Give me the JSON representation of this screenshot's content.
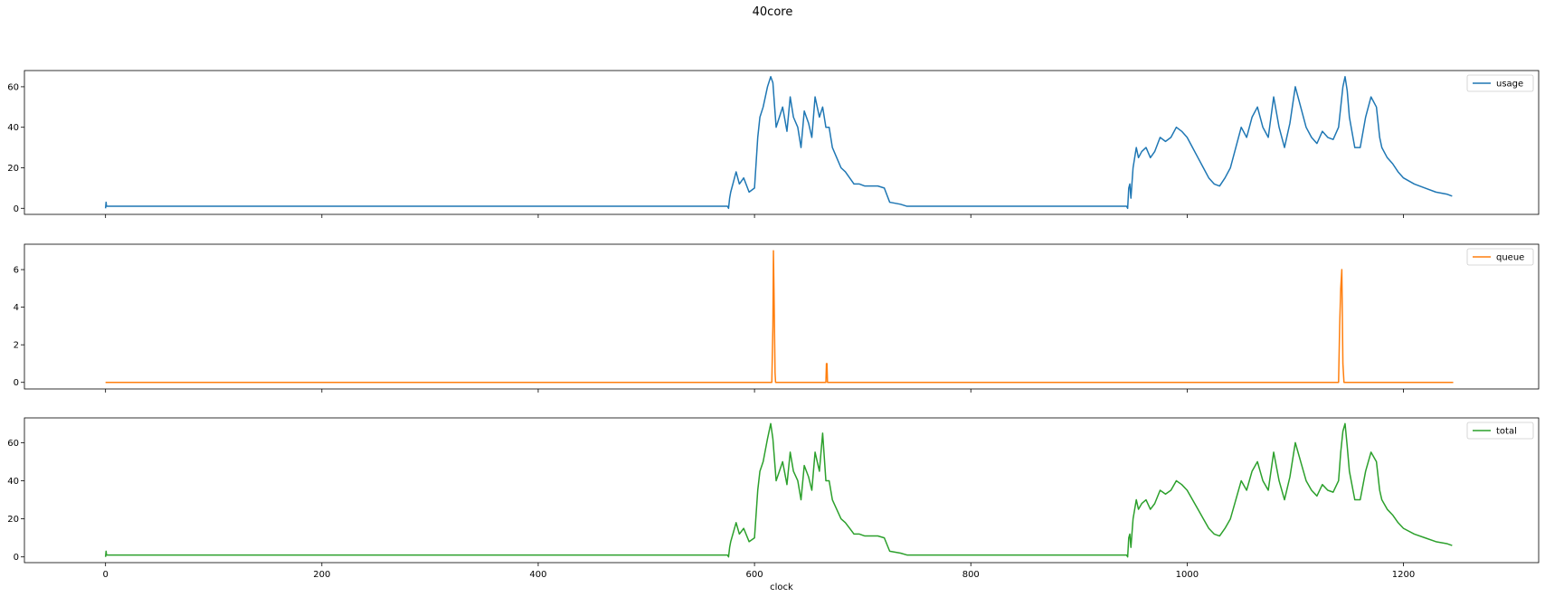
{
  "figure": {
    "title": "40core",
    "xlabel": "clock"
  },
  "chart_data": [
    {
      "type": "line",
      "series": [
        {
          "name": "usage",
          "color": "#1f77b4"
        }
      ],
      "x": [
        0,
        0.5,
        0.9,
        1.2,
        2,
        575,
        576,
        577,
        578,
        580,
        583,
        586,
        590,
        595,
        600,
        603,
        605,
        608,
        612,
        615,
        617,
        620,
        623,
        626,
        630,
        633,
        636,
        640,
        643,
        646,
        650,
        653,
        656,
        660,
        663,
        666,
        669,
        672,
        676,
        680,
        684,
        688,
        692,
        697,
        702,
        708,
        714,
        720,
        725,
        735,
        741,
        745,
        760,
        800,
        850,
        900,
        944,
        945,
        946,
        947,
        948,
        950,
        953,
        955,
        958,
        962,
        966,
        970,
        975,
        980,
        985,
        990,
        995,
        1000,
        1005,
        1010,
        1015,
        1020,
        1025,
        1030,
        1035,
        1040,
        1045,
        1050,
        1055,
        1060,
        1065,
        1070,
        1075,
        1080,
        1085,
        1090,
        1095,
        1100,
        1105,
        1110,
        1115,
        1120,
        1125,
        1130,
        1135,
        1140,
        1142,
        1144,
        1146,
        1148,
        1150,
        1155,
        1160,
        1165,
        1170,
        1175,
        1178,
        1180,
        1185,
        1190,
        1195,
        1200,
        1210,
        1220,
        1230,
        1240,
        1245
      ],
      "y": [
        0,
        3,
        1,
        1,
        1,
        1,
        0,
        5,
        8,
        12,
        18,
        12,
        15,
        8,
        10,
        35,
        45,
        50,
        60,
        65,
        62,
        40,
        45,
        50,
        38,
        55,
        45,
        40,
        30,
        48,
        42,
        35,
        55,
        45,
        50,
        40,
        40,
        30,
        25,
        20,
        18,
        15,
        12,
        12,
        11,
        11,
        11,
        10,
        3,
        2,
        1,
        1,
        1,
        1,
        1,
        1,
        1,
        0,
        10,
        12,
        5,
        20,
        30,
        25,
        28,
        30,
        25,
        28,
        35,
        33,
        35,
        40,
        38,
        35,
        30,
        25,
        20,
        15,
        12,
        11,
        15,
        20,
        30,
        40,
        35,
        45,
        50,
        40,
        35,
        55,
        40,
        30,
        42,
        60,
        50,
        40,
        35,
        32,
        38,
        35,
        34,
        40,
        50,
        60,
        65,
        58,
        45,
        30,
        30,
        45,
        55,
        50,
        35,
        30,
        25,
        22,
        18,
        15,
        12,
        10,
        8,
        7,
        6
      ],
      "ylim": [
        -3,
        68
      ],
      "yticks": [
        "0",
        "20",
        "40",
        "60"
      ],
      "legend": "top-right"
    },
    {
      "type": "line",
      "series": [
        {
          "name": "queue",
          "color": "#ff7f0e"
        }
      ],
      "x": [
        0,
        616,
        617,
        617.5,
        618,
        619,
        619.5,
        620,
        666,
        666.5,
        667,
        667.5,
        1140,
        1141,
        1142,
        1143,
        1144,
        1145,
        1246
      ],
      "y": [
        0,
        0,
        3,
        7,
        5,
        0.5,
        0,
        0,
        0,
        1,
        1,
        0,
        0,
        3,
        5,
        6,
        1,
        0,
        0
      ],
      "ylim": [
        -0.35,
        7.35
      ],
      "yticks": [
        "0",
        "2",
        "4",
        "6"
      ],
      "legend": "top-right"
    },
    {
      "type": "line",
      "series": [
        {
          "name": "total",
          "color": "#2ca02c"
        }
      ],
      "x": [
        0,
        0.5,
        0.9,
        1.2,
        2,
        575,
        576,
        577,
        578,
        580,
        583,
        586,
        590,
        595,
        600,
        603,
        605,
        608,
        612,
        615,
        617,
        620,
        623,
        626,
        630,
        633,
        636,
        640,
        643,
        646,
        650,
        653,
        656,
        660,
        663,
        666,
        669,
        672,
        676,
        680,
        684,
        688,
        692,
        697,
        702,
        708,
        714,
        720,
        725,
        735,
        741,
        745,
        760,
        800,
        850,
        900,
        944,
        945,
        946,
        947,
        948,
        950,
        953,
        955,
        958,
        962,
        966,
        970,
        975,
        980,
        985,
        990,
        995,
        1000,
        1005,
        1010,
        1015,
        1020,
        1025,
        1030,
        1035,
        1040,
        1045,
        1050,
        1055,
        1060,
        1065,
        1070,
        1075,
        1080,
        1085,
        1090,
        1095,
        1100,
        1105,
        1110,
        1115,
        1120,
        1125,
        1130,
        1135,
        1140,
        1142,
        1144,
        1146,
        1148,
        1150,
        1155,
        1160,
        1165,
        1170,
        1175,
        1178,
        1180,
        1185,
        1190,
        1195,
        1200,
        1210,
        1220,
        1230,
        1240,
        1245
      ],
      "y": [
        0,
        3,
        1,
        1,
        1,
        1,
        0,
        5,
        8,
        12,
        18,
        12,
        15,
        8,
        10,
        35,
        45,
        50,
        62,
        70,
        62,
        40,
        45,
        50,
        38,
        55,
        45,
        40,
        30,
        48,
        42,
        35,
        55,
        45,
        65,
        40,
        40,
        30,
        25,
        20,
        18,
        15,
        12,
        12,
        11,
        11,
        11,
        10,
        3,
        2,
        1,
        1,
        1,
        1,
        1,
        1,
        1,
        0,
        10,
        12,
        5,
        20,
        30,
        25,
        28,
        30,
        25,
        28,
        35,
        33,
        35,
        40,
        38,
        35,
        30,
        25,
        20,
        15,
        12,
        11,
        15,
        20,
        30,
        40,
        35,
        45,
        50,
        40,
        35,
        55,
        40,
        30,
        42,
        60,
        50,
        40,
        35,
        32,
        38,
        35,
        34,
        40,
        55,
        66,
        70,
        58,
        45,
        30,
        30,
        45,
        55,
        50,
        35,
        30,
        25,
        22,
        18,
        15,
        12,
        10,
        8,
        7,
        6
      ],
      "ylim": [
        -3,
        73
      ],
      "yticks": [
        "0",
        "20",
        "40",
        "60"
      ],
      "legend": "top-right"
    }
  ],
  "x_axis": {
    "xlim": [
      -75,
      1325
    ],
    "ticks": [
      "0",
      "200",
      "400",
      "600",
      "800",
      "1000",
      "1200"
    ]
  }
}
